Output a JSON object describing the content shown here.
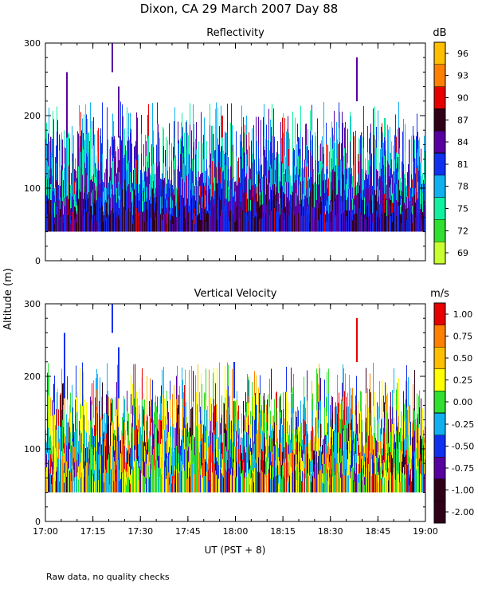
{
  "figure": {
    "title": "Dixon, CA 29 March 2007  Day  88",
    "ylabel": "Altitude (m)",
    "xlabel": "UT  (PST + 8)",
    "footnote": "Raw data, no quality checks"
  },
  "chart_data": [
    {
      "type": "heatmap",
      "title": "Reflectivity",
      "unit": "dB",
      "xlim": [
        "17:00",
        "19:00"
      ],
      "x_ticks": [
        "17:00",
        "17:15",
        "17:30",
        "17:45",
        "18:00",
        "18:15",
        "18:30",
        "18:45",
        "19:00"
      ],
      "ylim": [
        0,
        300
      ],
      "y_ticks": [
        0,
        100,
        200,
        300
      ],
      "data_altitude_range_m": [
        40,
        180
      ],
      "sporadic_echo_max_m": 300,
      "colorbar": {
        "labels": [
          "96",
          "93",
          "90",
          "87",
          "84",
          "81",
          "78",
          "75",
          "72",
          "69"
        ],
        "colors": [
          "#ffbf00",
          "#ff8000",
          "#e80000",
          "#300018",
          "#5800a0",
          "#1030f0",
          "#10b0f0",
          "#10f0a0",
          "#30e030",
          "#c8ff30"
        ]
      }
    },
    {
      "type": "heatmap",
      "title": "Vertical Velocity",
      "unit": "m/s",
      "xlim": [
        "17:00",
        "19:00"
      ],
      "x_ticks": [
        "17:00",
        "17:15",
        "17:30",
        "17:45",
        "18:00",
        "18:15",
        "18:30",
        "18:45",
        "19:00"
      ],
      "ylim": [
        0,
        300
      ],
      "y_ticks": [
        0,
        100,
        200,
        300
      ],
      "data_altitude_range_m": [
        40,
        180
      ],
      "sporadic_echo_max_m": 300,
      "colorbar": {
        "labels": [
          "1.00",
          "0.75",
          "0.50",
          "0.25",
          "0.00",
          "-0.25",
          "-0.50",
          "-0.75",
          "-1.00",
          "-2.00"
        ],
        "colors": [
          "#e80000",
          "#ff8000",
          "#ffbf00",
          "#ffff00",
          "#30e030",
          "#10b0f0",
          "#1030f0",
          "#5800a0",
          "#300018",
          "#300018"
        ]
      }
    }
  ]
}
